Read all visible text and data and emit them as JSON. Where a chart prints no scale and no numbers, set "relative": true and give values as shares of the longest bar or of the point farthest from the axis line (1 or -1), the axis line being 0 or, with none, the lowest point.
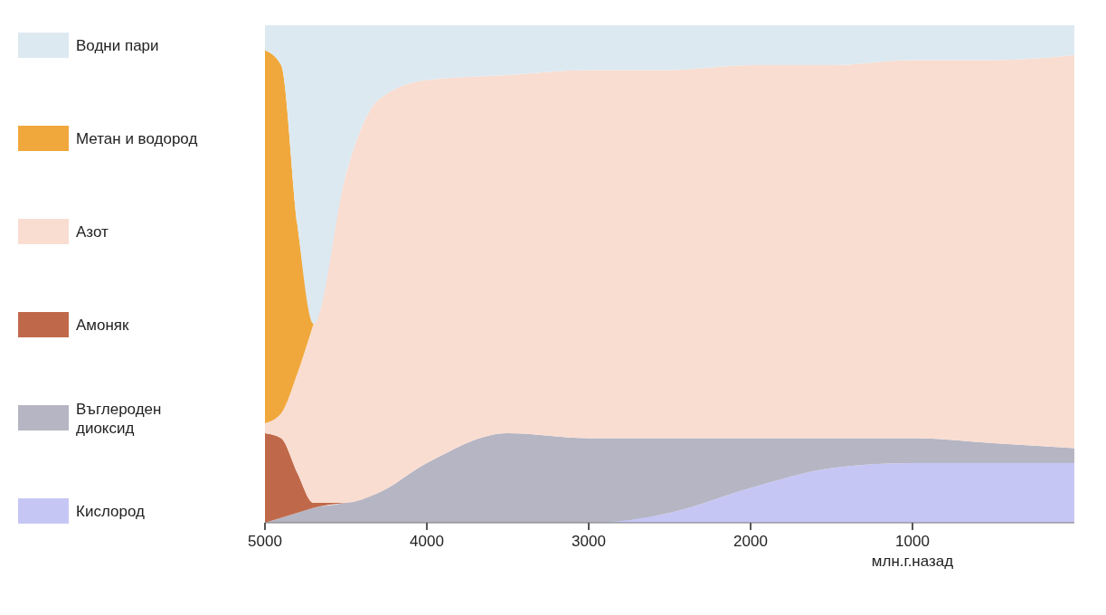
{
  "chart_data": {
    "type": "area",
    "stacked": true,
    "relative": true,
    "xlabel": "млн.г.назад",
    "x": [
      5000,
      4900,
      4800,
      4700,
      4500,
      4300,
      4000,
      3500,
      3000,
      2500,
      2000,
      1500,
      1000,
      500,
      0
    ],
    "xlim": [
      5000,
      0
    ],
    "xticks": [
      5000,
      4000,
      3000,
      2000,
      1000
    ],
    "legend": "left",
    "grid": false,
    "series": [
      {
        "name": "Кислород",
        "color": "#c6c6f5",
        "values": [
          null,
          null,
          null,
          null,
          null,
          null,
          null,
          null,
          0,
          0.02,
          0.07,
          0.11,
          0.12,
          0.12,
          0.12
        ]
      },
      {
        "name": "Въглероден диоксид",
        "color": "#b5b5c3",
        "values": [
          0,
          0.01,
          0.02,
          0.03,
          0.04,
          0.06,
          0.12,
          0.18,
          0.17,
          0.15,
          0.1,
          0.06,
          0.05,
          0.04,
          0.03
        ]
      },
      {
        "name": "Амоняк",
        "color": "#c0694a",
        "values": [
          0.18,
          0.16,
          0.08,
          0.01,
          0,
          null,
          null,
          null,
          null,
          null,
          null,
          null,
          null,
          null,
          null
        ]
      },
      {
        "name": "Азот",
        "color": "#f9ddd1",
        "values": [
          0.02,
          0.05,
          0.2,
          0.36,
          0.66,
          0.79,
          0.77,
          0.72,
          0.74,
          0.74,
          0.75,
          0.75,
          0.76,
          0.77,
          0.79
        ]
      },
      {
        "name": "Метан и водород",
        "color": "#f0a83c",
        "values": [
          0.75,
          0.7,
          0.3,
          0,
          null,
          null,
          null,
          null,
          null,
          null,
          null,
          null,
          null,
          null,
          null
        ]
      },
      {
        "name": "Водни пари",
        "color": "#dde9f1",
        "values": [
          0.05,
          0.08,
          0.4,
          0.6,
          0.3,
          0.15,
          0.11,
          0.1,
          0.09,
          0.09,
          0.08,
          0.08,
          0.07,
          0.07,
          0.06
        ]
      }
    ]
  }
}
